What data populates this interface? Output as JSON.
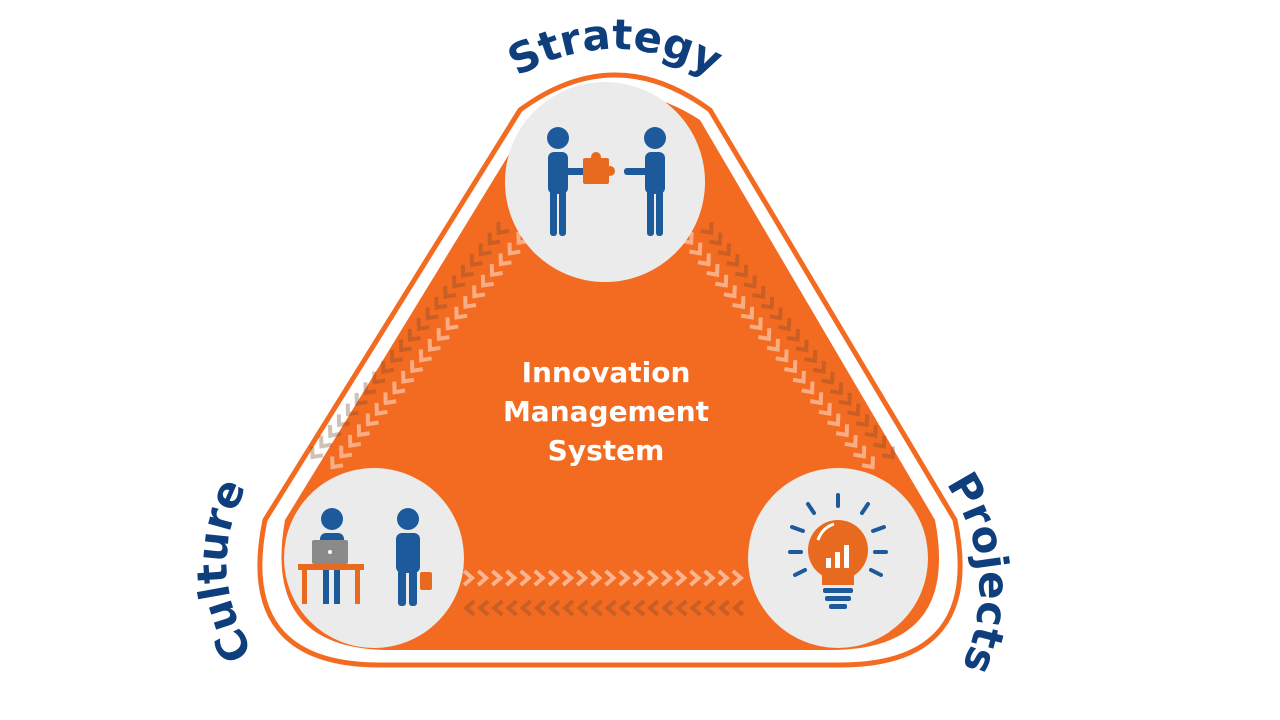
{
  "diagram": {
    "center_lines": [
      "Innovation",
      "Management",
      "System"
    ],
    "corners": {
      "top": {
        "label": "Strategy",
        "icon": "handshake-puzzle-icon"
      },
      "left": {
        "label": "Culture",
        "icon": "people-working-icon"
      },
      "right": {
        "label": "Projects",
        "icon": "lightbulb-chart-icon"
      }
    }
  },
  "colors": {
    "orange": "#f36b21",
    "navy": "#0e3f7c",
    "icon_blue": "#1d5a9c",
    "circle": "#ebebeb",
    "white": "#ffffff",
    "desk": "#e86a1e",
    "laptop": "#8a8a8a"
  }
}
